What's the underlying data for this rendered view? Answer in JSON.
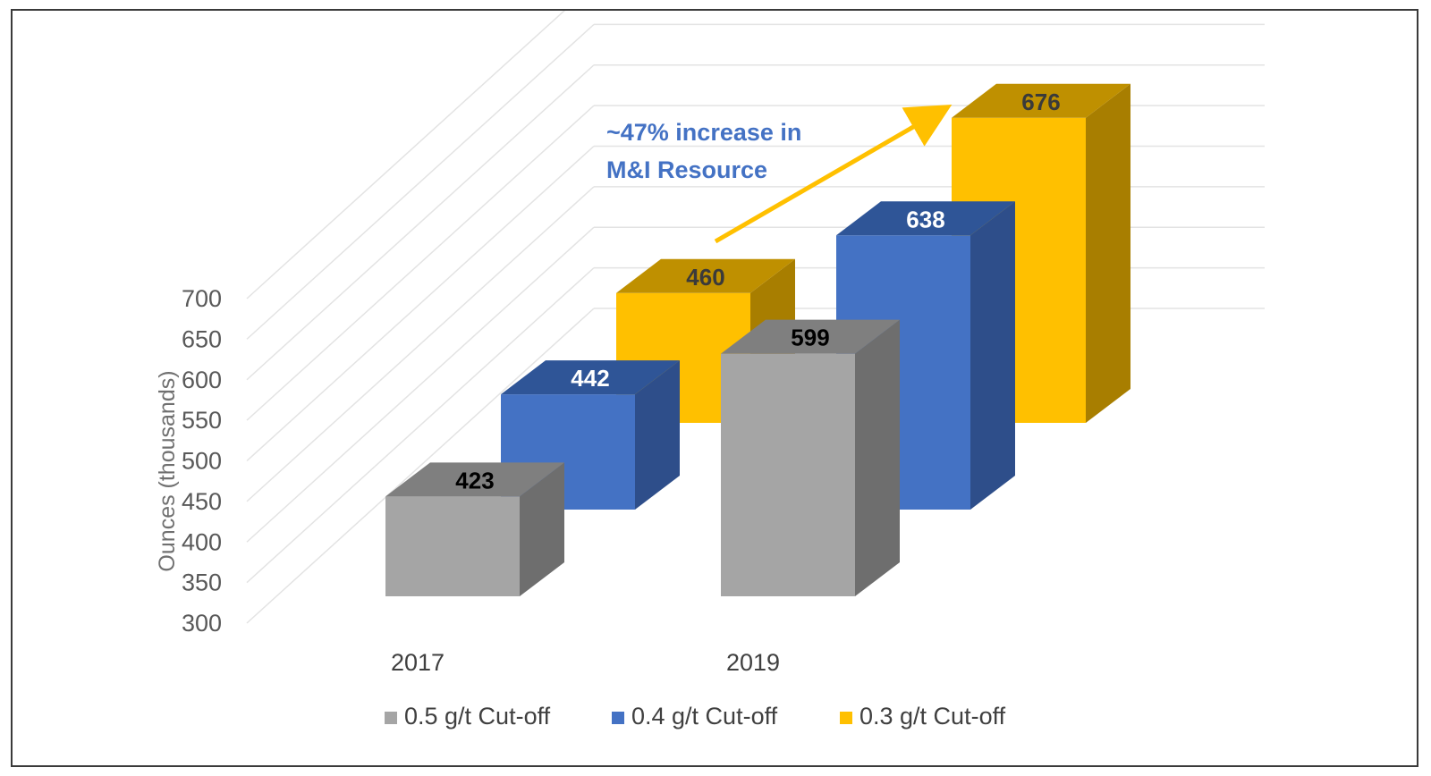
{
  "chart_data": {
    "type": "bar",
    "style": "3d-clustered-column",
    "categories": [
      "2017",
      "2019"
    ],
    "series": [
      {
        "name": "0.5 g/t Cut-off",
        "values": [
          423,
          599
        ],
        "color": "#A5A5A5",
        "top_color": "#7F7F7F",
        "side_color": "#6E6E6E",
        "label_color": "#000000"
      },
      {
        "name": "0.4 g/t Cut-off",
        "values": [
          442,
          638
        ],
        "color": "#4472C4",
        "top_color": "#2F5597",
        "side_color": "#2E4E8A",
        "label_color": "#FFFFFF"
      },
      {
        "name": "0.3 g/t Cut-off",
        "values": [
          460,
          676
        ],
        "color": "#FFC000",
        "top_color": "#BF9000",
        "side_color": "#A87E00",
        "label_color": "#3A3A3A"
      }
    ],
    "ylabel": "Ounces (thousands)",
    "xlabel": "",
    "ylim": [
      300,
      700
    ],
    "yticks": [
      300,
      350,
      400,
      450,
      500,
      550,
      600,
      650,
      700
    ],
    "grid": true,
    "legend_position": "bottom",
    "annotation": {
      "lines": [
        "~47%  increase in",
        "M&I Resource"
      ],
      "color": "#4472C4",
      "arrow_color": "#FFC000"
    }
  }
}
